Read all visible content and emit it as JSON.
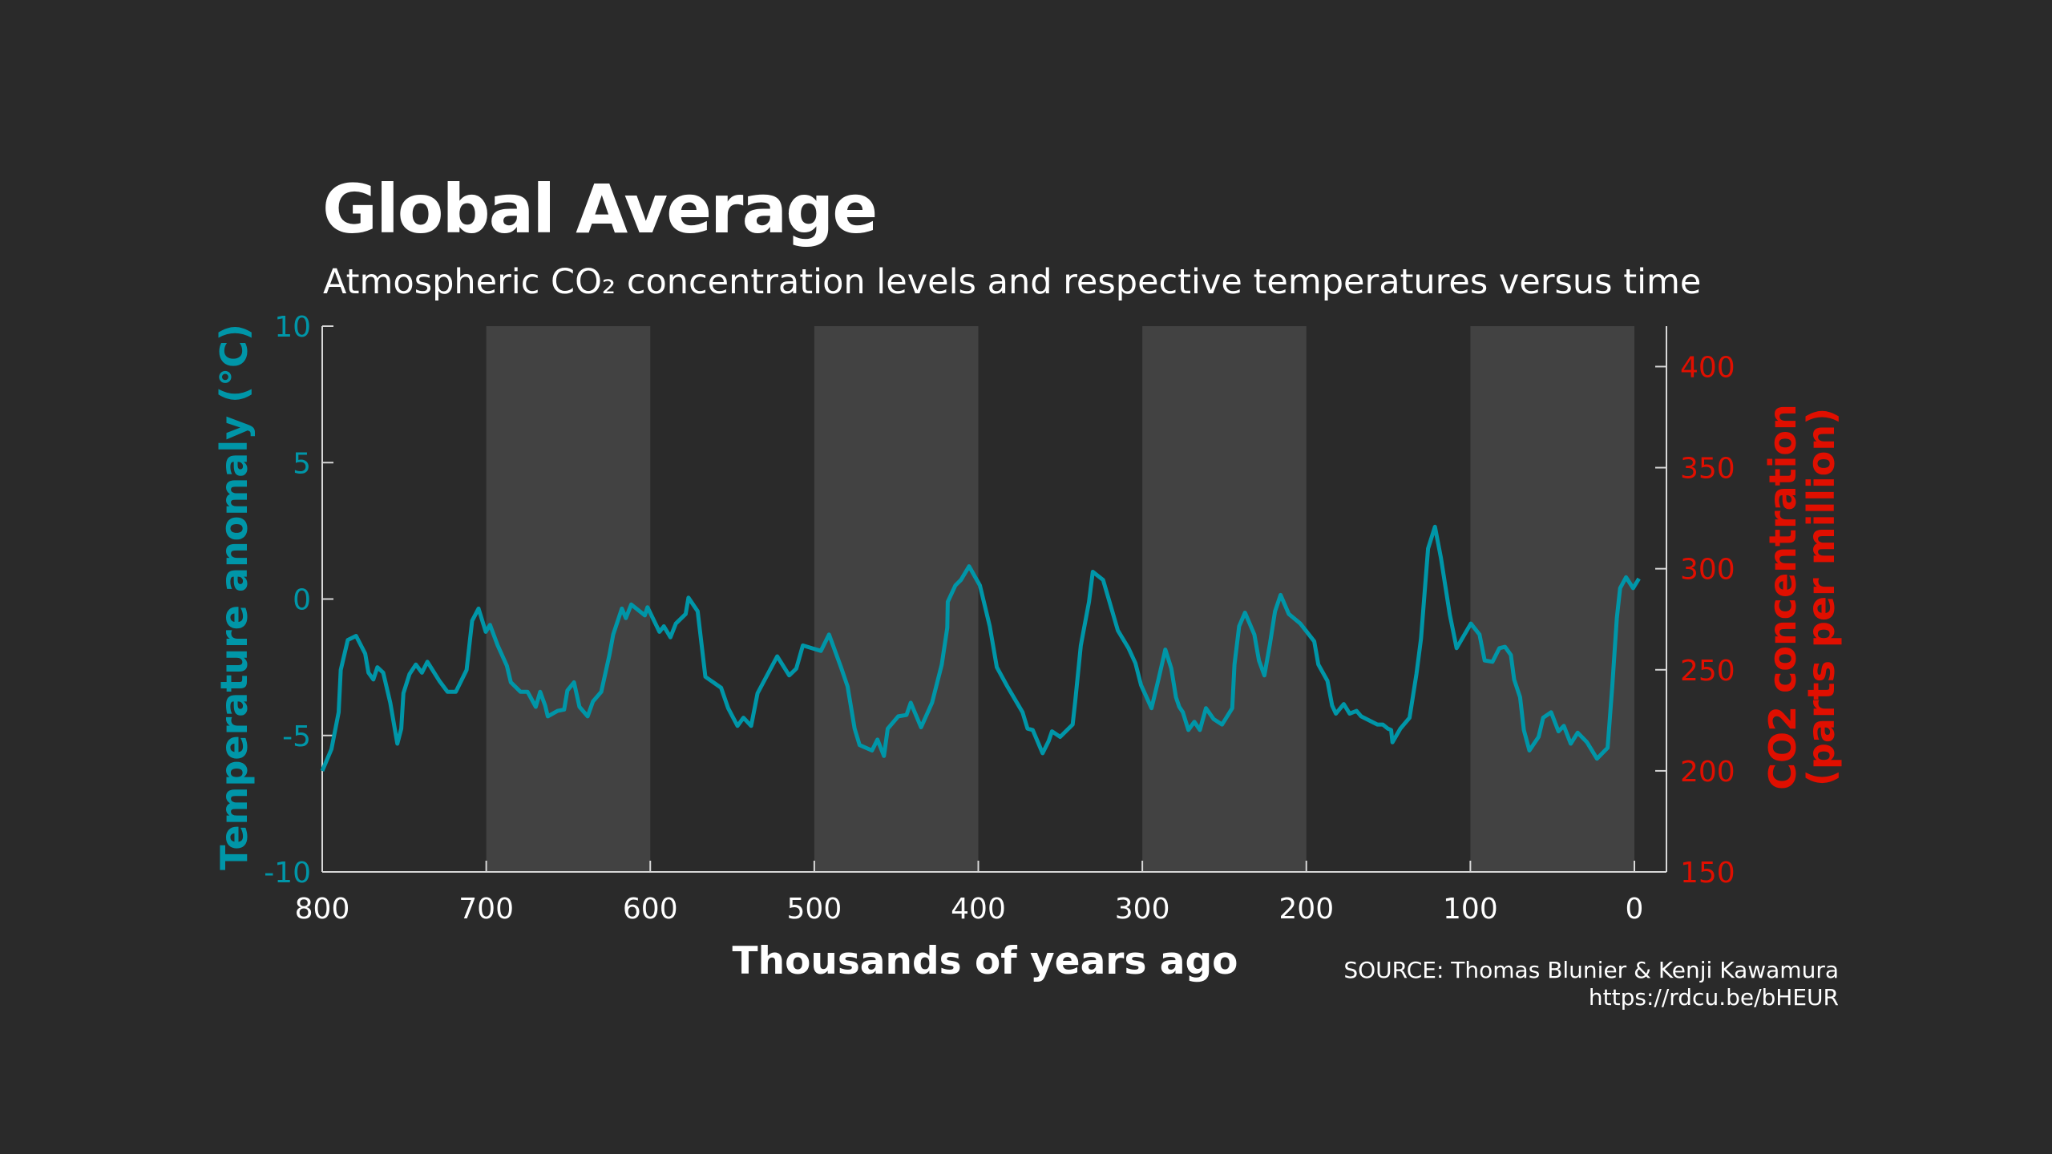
{
  "title": "Global Average",
  "subtitle": "Atmospheric CO₂ concentration levels and respective temperatures versus time",
  "source": {
    "line1": "SOURCE: Thomas Blunier & Kenji Kawamura",
    "line2": "https://rdcu.be/bHEUR"
  },
  "colors": {
    "background": "#2a2a2a",
    "shading": "#424242",
    "axis": "#d8d8d8",
    "temperature": "#0096a8",
    "co2": "#e00f00",
    "text": "#ffffff"
  },
  "chart_data": {
    "type": "line",
    "title": "Global Average",
    "subtitle": "Atmospheric CO₂ concentration levels and respective temperatures versus time",
    "xlabel": "Thousands of years ago",
    "ylabel_left": "Temperature anomaly (°C)",
    "ylabel_right_line1": "CO2 concentration",
    "ylabel_right_line2": "(parts per million)",
    "xlim": [
      800,
      -20
    ],
    "x_reversed": true,
    "ylim_left": [
      -10,
      10
    ],
    "ylim_right": [
      150,
      420
    ],
    "x_ticks": [
      "800",
      "700",
      "600",
      "500",
      "400",
      "300",
      "200",
      "100",
      "0"
    ],
    "y_left_ticks": [
      "10",
      "5",
      "0",
      "-5",
      "-10"
    ],
    "y_right_ticks": [
      "400",
      "350",
      "300",
      "250",
      "200",
      "150"
    ],
    "shaded_bands": [
      [
        700,
        600
      ],
      [
        500,
        400
      ],
      [
        300,
        200
      ],
      [
        100,
        0
      ]
    ],
    "grid": false,
    "series": [
      {
        "axis": "left",
        "x": [
          800,
          794.4,
          790,
          788.7,
          784.4,
          779.4,
          773.8,
          771.8,
          768.8,
          766.4,
          762.8,
          758.5,
          754.2,
          751.8,
          750.5,
          746.8,
          742.9,
          739.2,
          735.9,
          728.6,
          723.6,
          718.6,
          712,
          708.6,
          704.7,
          700.3,
          697.7,
          693,
          687.4,
          685,
          679.1,
          674.8,
          669.8,
          667.1,
          664.1,
          662.5,
          656.5,
          652.5,
          650.5,
          646.5,
          643.2,
          638.2,
          634.9,
          629.9,
          624.9,
          622.6,
          617.3,
          614.9,
          611.6,
          603.3,
          601.7,
          594.4,
          591.7,
          587.7,
          584.4,
          578.4,
          576.7,
          571.1,
          566.4,
          556.8,
          552.5,
          546.8,
          543.2,
          538.5,
          534.6,
          522.6,
          515.3,
          511,
          507,
          496,
          491,
          483.7,
          479.7,
          475.4,
          472.4,
          464.8,
          461.5,
          457.5,
          455.2,
          448.8,
          443.8,
          441.2,
          434.9,
          428.2,
          422.3,
          418.9,
          418.6,
          414,
          410.6,
          405.6,
          399,
          393,
          388.7,
          382.3,
          373,
          370,
          366.8,
          360.8,
          357.1,
          355.1,
          350.1,
          342.5,
          340.9,
          337.5,
          332.5,
          330.2,
          323.9,
          314.9,
          308.4,
          304.2,
          300.8,
          294.4,
          290.2,
          286,
          282.3,
          279.5,
          277.5,
          275.3,
          271.9,
          268.3,
          264.9,
          261.2,
          256.5,
          251.4,
          245.2,
          243.8,
          241,
          237.4,
          231.7,
          228.9,
          225.6,
          222.2,
          219.1,
          215.7,
          210.7,
          203.7,
          195.2,
          192.7,
          187.1,
          184.3,
          182,
          177.2,
          173.6,
          169.4,
          166.6,
          156.7,
          153.4,
          150.3,
          148.3,
          147.5,
          142.7,
          137.1,
          132.9,
          130.1,
          125.8,
          121.6,
          117.9,
          112.6,
          108.4,
          99.7,
          94.4,
          91.3,
          86.5,
          82.3,
          78.9,
          75.3,
          73.3,
          69.7,
          67.4,
          64,
          58.4,
          55.6,
          50.8,
          46.3,
          43,
          38.8,
          34.6,
          28.9,
          22.8,
          16.3,
          13.5,
          10.7,
          8.7,
          5.1,
          0.8,
          -2.8
        ],
        "y": [
          -6.3,
          -5.5,
          -4.15,
          -2.6,
          -1.5,
          -1.35,
          -2.0,
          -2.7,
          -2.95,
          -2.5,
          -2.7,
          -3.8,
          -5.3,
          -4.75,
          -3.45,
          -2.75,
          -2.4,
          -2.7,
          -2.3,
          -3.0,
          -3.4,
          -3.4,
          -2.6,
          -0.8,
          -0.35,
          -1.2,
          -0.95,
          -1.7,
          -2.45,
          -3.05,
          -3.4,
          -3.4,
          -3.95,
          -3.4,
          -3.9,
          -4.3,
          -4.1,
          -4.05,
          -3.35,
          -3.05,
          -3.95,
          -4.3,
          -3.75,
          -3.4,
          -2.05,
          -1.3,
          -0.35,
          -0.7,
          -0.2,
          -0.6,
          -0.3,
          -1.2,
          -1.0,
          -1.4,
          -0.9,
          -0.55,
          0.05,
          -0.45,
          -2.85,
          -3.25,
          -4.0,
          -4.65,
          -4.35,
          -4.65,
          -3.45,
          -2.1,
          -2.8,
          -2.55,
          -1.7,
          -1.9,
          -1.3,
          -2.5,
          -3.2,
          -4.75,
          -5.35,
          -5.55,
          -5.15,
          -5.75,
          -4.75,
          -4.3,
          -4.25,
          -3.8,
          -4.7,
          -3.8,
          -2.4,
          -1.05,
          -0.1,
          0.5,
          0.7,
          1.2,
          0.5,
          -1.0,
          -2.5,
          -3.2,
          -4.15,
          -4.75,
          -4.8,
          -5.65,
          -5.2,
          -4.85,
          -5.05,
          -4.6,
          -3.75,
          -1.7,
          -0.1,
          1.0,
          0.7,
          -1.15,
          -1.8,
          -2.35,
          -3.15,
          -4.0,
          -2.95,
          -1.85,
          -2.55,
          -3.6,
          -3.95,
          -4.15,
          -4.8,
          -4.5,
          -4.8,
          -4.0,
          -4.4,
          -4.6,
          -4.0,
          -2.4,
          -1.0,
          -0.5,
          -1.3,
          -2.25,
          -2.8,
          -1.65,
          -0.45,
          0.15,
          -0.55,
          -0.9,
          -1.55,
          -2.4,
          -3.0,
          -3.9,
          -4.2,
          -3.85,
          -4.2,
          -4.1,
          -4.3,
          -4.6,
          -4.6,
          -4.75,
          -4.8,
          -5.25,
          -4.75,
          -4.35,
          -2.75,
          -1.45,
          1.85,
          2.65,
          1.5,
          -0.55,
          -1.8,
          -0.9,
          -1.3,
          -2.25,
          -2.3,
          -1.8,
          -1.75,
          -2.05,
          -2.95,
          -3.6,
          -4.8,
          -5.55,
          -5.05,
          -4.35,
          -4.15,
          -4.85,
          -4.65,
          -5.3,
          -4.9,
          -5.25,
          -5.85,
          -5.45,
          -3.2,
          -0.7,
          0.4,
          0.8,
          0.4,
          0.75
        ]
      }
    ]
  }
}
